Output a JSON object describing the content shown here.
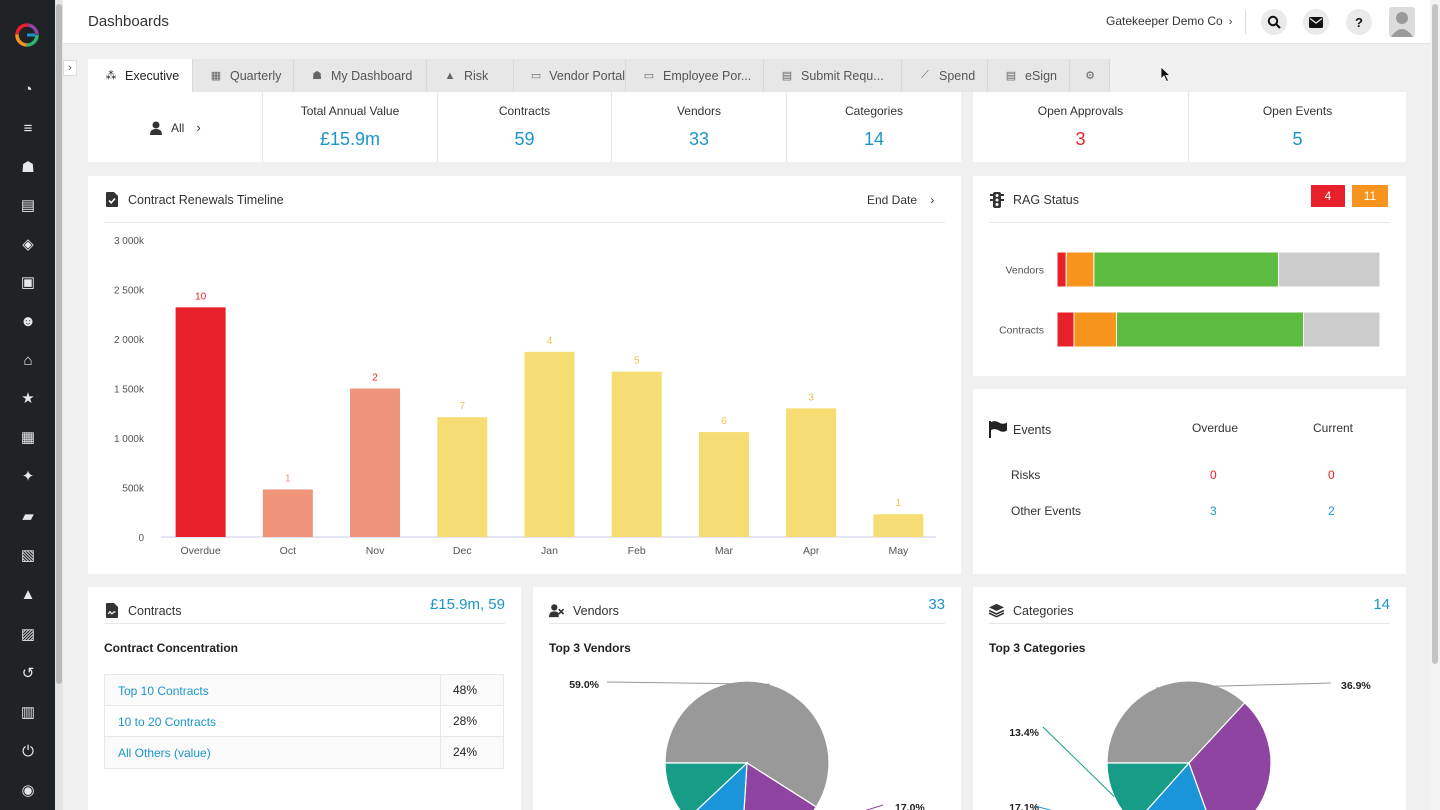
{
  "header": {
    "title": "Dashboards",
    "company": "Gatekeeper Demo Co",
    "icons": [
      "search-icon",
      "mail-icon",
      "help-icon",
      "avatar"
    ]
  },
  "rail_icons": [
    "dashboard-icon",
    "list-icon",
    "vendor-icon",
    "document-icon",
    "layers-icon",
    "archive-icon",
    "users-icon",
    "bank-icon",
    "star-icon",
    "table-icon",
    "sparkle-icon",
    "folders-icon",
    "calendar-icon",
    "warning-icon",
    "approval-icon",
    "history-icon",
    "chart-icon",
    "plug-icon",
    "compass-icon"
  ],
  "tabs": [
    {
      "label": "Executive",
      "icon": "network-icon"
    },
    {
      "label": "Quarterly",
      "icon": "grid-icon"
    },
    {
      "label": "My Dashboard",
      "icon": "user-gear-icon"
    },
    {
      "label": "Risk",
      "icon": "warning-icon"
    },
    {
      "label": "Vendor Portal",
      "icon": "monitor-icon"
    },
    {
      "label": "Employee Por...",
      "icon": "monitor-user-icon"
    },
    {
      "label": "Submit Requ...",
      "icon": "file-check-icon"
    },
    {
      "label": "Spend",
      "icon": "line-chart-icon"
    },
    {
      "label": "eSign",
      "icon": "file-sign-icon"
    },
    {
      "label": "",
      "icon": "gear-icon"
    }
  ],
  "filter": {
    "label": "All"
  },
  "kpis": [
    {
      "label": "Total Annual Value",
      "value": "£15.9m"
    },
    {
      "label": "Contracts",
      "value": "59"
    },
    {
      "label": "Vendors",
      "value": "33"
    },
    {
      "label": "Categories",
      "value": "14"
    }
  ],
  "kpis_right": [
    {
      "label": "Open Approvals",
      "value": "3",
      "color": "#e8202a"
    },
    {
      "label": "Open Events",
      "value": "5",
      "color": "#1b95c9"
    }
  ],
  "renewals": {
    "title": "Contract Renewals Timeline",
    "sort": "End Date"
  },
  "chart_data": {
    "type": "bar",
    "categories": [
      "Overdue",
      "Oct",
      "Nov",
      "Dec",
      "Jan",
      "Feb",
      "Mar",
      "Apr",
      "May"
    ],
    "values": [
      2320,
      480,
      1500,
      1210,
      1870,
      1670,
      1060,
      1300,
      230
    ],
    "labels": [
      "10",
      "1",
      "2",
      "7",
      "4",
      "5",
      "6",
      "3",
      "1"
    ],
    "colors": [
      "#e8202a",
      "#ef937b",
      "#ef937b",
      "#f5dd74",
      "#f5dd74",
      "#f5dd74",
      "#f5dd74",
      "#f5dd74",
      "#f5dd74"
    ],
    "label_colors": [
      "#e8202a",
      "#ef937b",
      "#e8202a",
      "#f0c04a",
      "#f0c04a",
      "#f0c04a",
      "#f0c04a",
      "#f0c04a",
      "#f0c04a"
    ],
    "yticks": [
      0,
      500,
      1000,
      1500,
      2000,
      2500,
      3000
    ],
    "ytick_labels": [
      "0",
      "500k",
      "1 000k",
      "1 500k",
      "2 000k",
      "2 500k",
      "3 000k"
    ],
    "ylim": [
      0,
      3000
    ],
    "grid": false
  },
  "rag": {
    "title": "RAG Status",
    "badges": [
      {
        "value": "4",
        "color": "#e8202a"
      },
      {
        "value": "11",
        "color": "#f7941d"
      }
    ],
    "rows": [
      {
        "label": "Vendors",
        "segments": [
          {
            "value": 1,
            "color": "#e8202a"
          },
          {
            "value": 3,
            "color": "#f7941d"
          },
          {
            "value": 20,
            "color": "#5dbb3f"
          },
          {
            "value": 11,
            "color": "#cccccc"
          }
        ]
      },
      {
        "label": "Contracts",
        "segments": [
          {
            "value": 2,
            "color": "#e8202a"
          },
          {
            "value": 5,
            "color": "#f7941d"
          },
          {
            "value": 22,
            "color": "#5dbb3f"
          },
          {
            "value": 9,
            "color": "#cccccc"
          }
        ]
      }
    ]
  },
  "events": {
    "title": "Events",
    "col_overdue": "Overdue",
    "col_current": "Current",
    "rows": [
      {
        "label": "Risks",
        "overdue": "0",
        "current": "0",
        "color": "#e8202a"
      },
      {
        "label": "Other Events",
        "overdue": "3",
        "current": "2",
        "color": "#1b95c9"
      }
    ]
  },
  "contracts_card": {
    "title": "Contracts",
    "summary": "£15.9m, 59",
    "subtitle": "Contract Concentration",
    "rows": [
      {
        "label": "Top 10 Contracts",
        "value": "48%"
      },
      {
        "label": "10 to 20 Contracts",
        "value": "28%"
      },
      {
        "label": "All Others (value)",
        "value": "24%"
      }
    ]
  },
  "vendors_card": {
    "title": "Vendors",
    "count": "33",
    "subtitle": "Top 3 Vendors",
    "pie": [
      {
        "value": 59.0,
        "label": "59.0%",
        "color": "#999999"
      },
      {
        "value": 17.0,
        "label": "17.0%",
        "color": "#8e44a0"
      },
      {
        "value": 12.0,
        "label": "",
        "color": "#1b95d9"
      },
      {
        "value": 12.0,
        "label": "",
        "color": "#169c87"
      }
    ]
  },
  "categories_card": {
    "title": "Categories",
    "count": "14",
    "subtitle": "Top 3 Categories",
    "pie": [
      {
        "value": 36.9,
        "label": "36.9%",
        "color": "#999999"
      },
      {
        "value": 32.6,
        "label": "",
        "color": "#8e44a0"
      },
      {
        "value": 17.1,
        "label": "17.1%",
        "color": "#1b95d9"
      },
      {
        "value": 13.4,
        "label": "13.4%",
        "color": "#169c87"
      }
    ]
  }
}
